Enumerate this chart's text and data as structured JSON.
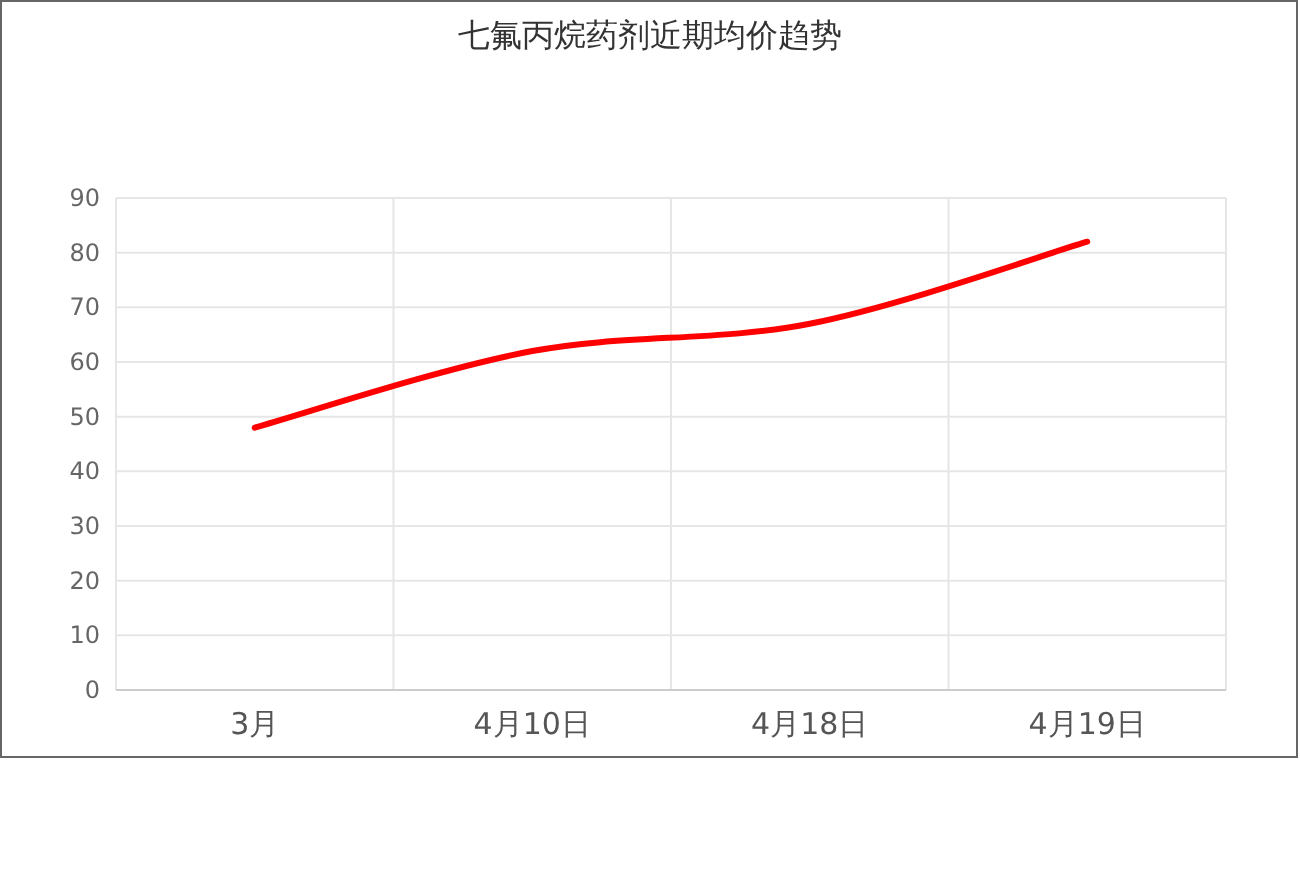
{
  "chart_data": {
    "type": "line",
    "title": "七氟丙烷药剂近期均价趋势",
    "categories": [
      "3月",
      "4月10日",
      "4月18日",
      "4月19日"
    ],
    "series": [
      {
        "color": "#ff0000",
        "values": [
          48,
          62,
          67,
          82
        ]
      }
    ],
    "ylim": [
      0,
      90
    ],
    "yticks": [
      0,
      10,
      20,
      30,
      40,
      50,
      60,
      70,
      80,
      90
    ],
    "grid": true,
    "marker": "none",
    "line_style": "solid"
  }
}
